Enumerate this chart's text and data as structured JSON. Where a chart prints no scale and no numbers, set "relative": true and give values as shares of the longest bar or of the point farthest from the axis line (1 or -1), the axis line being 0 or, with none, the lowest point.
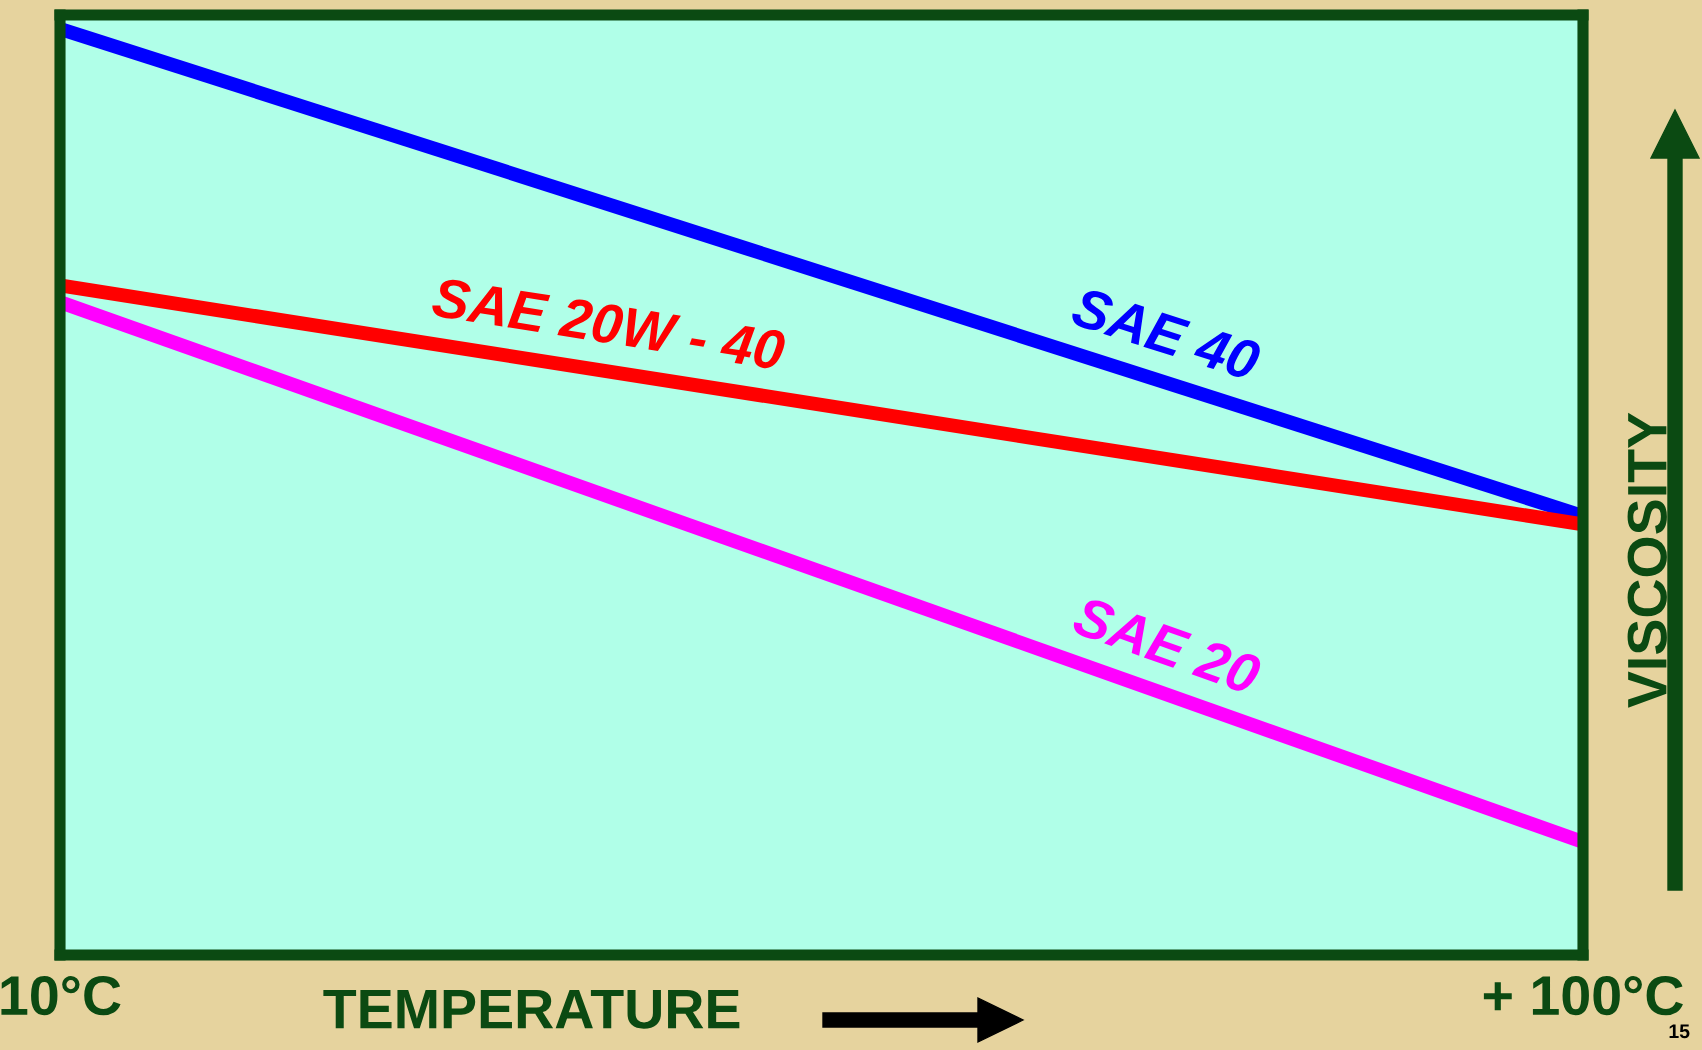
{
  "chart_data": {
    "type": "line",
    "relative": true,
    "xlabel": "TEMPERATURE",
    "ylabel": "VISCOSITY",
    "x": [
      10,
      100
    ],
    "xlim": [
      10,
      100
    ],
    "xticks": [
      {
        "value": 10,
        "label": "10°C"
      },
      {
        "value": 100,
        "label": "+ 100°C"
      }
    ],
    "series": [
      {
        "name": "SAE 40",
        "color": "#0000ff",
        "values": [
          1,
          0.474
        ]
      },
      {
        "name": "SAE 20W - 40",
        "color": "#ff0000",
        "values": [
          0.723,
          0.465
        ]
      },
      {
        "name": "SAE 20",
        "color": "#ff00ff",
        "values": [
          0.705,
          0.122
        ]
      }
    ],
    "legend": false,
    "line_style": "solid",
    "annotations": [
      "15"
    ]
  }
}
